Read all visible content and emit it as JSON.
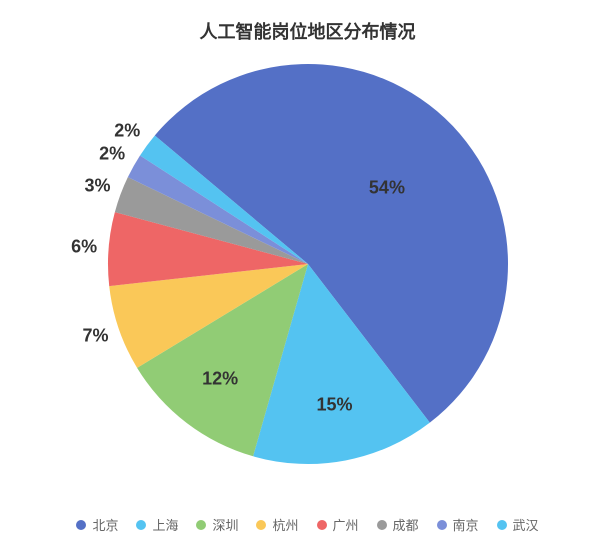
{
  "chart": {
    "type": "pie",
    "title": "人工智能岗位地区分布情况",
    "title_fontsize": 18,
    "title_fontweight": 700,
    "title_color": "#333333",
    "background_color": "#ffffff",
    "pie_radius": 200,
    "label_fontsize": 18,
    "label_fontweight": 700,
    "label_color": "#333333",
    "start_angle_deg": -140,
    "slices": [
      {
        "name": "北京",
        "value": 54,
        "label": "54%",
        "color": "#5470c6"
      },
      {
        "name": "上海",
        "value": 15,
        "label": "15%",
        "color": "#54c3f1"
      },
      {
        "name": "深圳",
        "value": 12,
        "label": "12%",
        "color": "#91cc75"
      },
      {
        "name": "杭州",
        "value": 7,
        "label": "7%",
        "color": "#fac858"
      },
      {
        "name": "广州",
        "value": 6,
        "label": "6%",
        "color": "#ee6666"
      },
      {
        "name": "成都",
        "value": 3,
        "label": "3%",
        "color": "#9a9a9a"
      },
      {
        "name": "南京",
        "value": 2,
        "label": "2%",
        "color": "#7b8fd9"
      },
      {
        "name": "武汉",
        "value": 2,
        "label": "2%",
        "color": "#54c3f1"
      }
    ],
    "legend": {
      "fontsize": 13,
      "color": "#666666",
      "dot_radius": 5,
      "items": [
        {
          "label": "北京",
          "color": "#5470c6"
        },
        {
          "label": "上海",
          "color": "#54c3f1"
        },
        {
          "label": "深圳",
          "color": "#91cc75"
        },
        {
          "label": "杭州",
          "color": "#fac858"
        },
        {
          "label": "广州",
          "color": "#ee6666"
        },
        {
          "label": "成都",
          "color": "#9a9a9a"
        },
        {
          "label": "南京",
          "color": "#7b8fd9"
        },
        {
          "label": "武汉",
          "color": "#54c3f1"
        }
      ]
    }
  }
}
